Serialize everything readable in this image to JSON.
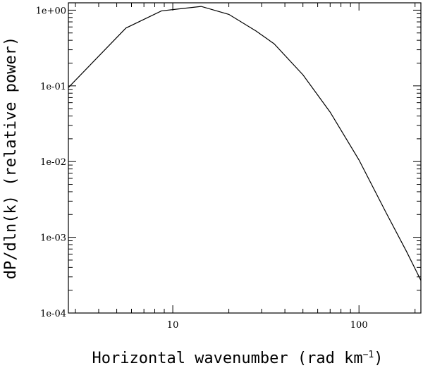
{
  "chart_data": {
    "type": "line",
    "xlabel": "Horizontal wavenumber (rad km",
    "xlabel_superscript": "−1",
    "xlabel_close": ")",
    "ylabel": "dP/dln(k) (relative power)",
    "xscale": "log",
    "yscale": "log",
    "xlim": [
      2.75,
      215
    ],
    "ylim": [
      0.0001,
      1.25
    ],
    "x_tick_labels": [
      {
        "value": 10,
        "label": "10"
      },
      {
        "value": 100,
        "label": "100"
      }
    ],
    "y_tick_labels": [
      {
        "value": 1,
        "label": "1e+00"
      },
      {
        "value": 0.1,
        "label": "1e-01"
      },
      {
        "value": 0.01,
        "label": "1e-02"
      },
      {
        "value": 0.001,
        "label": "1e-03"
      },
      {
        "value": 0.0001,
        "label": "1e-04"
      }
    ],
    "series": [
      {
        "color": "#000000",
        "x": [
          2.75,
          5.6,
          8.7,
          14.2,
          20,
          28,
          35,
          50,
          70,
          100,
          140,
          180,
          215
        ],
        "y": [
          0.095,
          0.58,
          0.98,
          1.12,
          0.88,
          0.53,
          0.36,
          0.14,
          0.045,
          0.0105,
          0.0021,
          0.00065,
          0.00027
        ]
      }
    ],
    "grid": false
  }
}
